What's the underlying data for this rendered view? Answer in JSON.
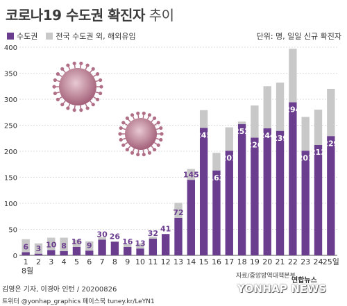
{
  "title": {
    "main": "코로나19 수도권 확진자",
    "sub": "추이"
  },
  "legend": {
    "metro": "수도권",
    "other": "전국 수도권 외, 해외유입"
  },
  "unit_note": "단위: 명, 일일 신규 확진자",
  "colors": {
    "metro": "#6b3d8f",
    "other": "#c8c8c8",
    "label": "#6b3d8f",
    "virus": "#b06f86"
  },
  "month_label": "8월",
  "day_suffix": "일",
  "source": "자료/중앙방역대책본부",
  "credit_line1": "김영은 기자, 이경아 인턴 / 20200826",
  "credit_line2": "트위터 @yonhap_graphics  페이스북 tuney.kr/LeYN1",
  "logo": {
    "ko": "연합뉴스",
    "en": "YONHAP NEWS"
  },
  "chart_data": {
    "type": "bar",
    "categories": [
      "1",
      "2",
      "3",
      "4",
      "5",
      "6",
      "7",
      "8",
      "9",
      "10",
      "11",
      "12",
      "13",
      "14",
      "15",
      "16",
      "17",
      "18",
      "19",
      "20",
      "21",
      "22",
      "23",
      "24",
      "25"
    ],
    "ylim": [
      0,
      400
    ],
    "yticks": [
      0,
      50,
      100,
      150,
      200,
      250,
      300,
      350,
      400
    ],
    "series": [
      {
        "name": "수도권",
        "values": [
          6,
          3,
          10,
          8,
          16,
          9,
          30,
          26,
          16,
          13,
          32,
          41,
          72,
          145,
          245,
          163,
          201,
          252,
          226,
          244,
          239,
          294,
          201,
          212,
          229
        ]
      },
      {
        "name": "전국 수도권 외, 해외유입",
        "values": [
          25,
          20,
          24,
          26,
          14,
          18,
          5,
          1,
          6,
          10,
          4,
          0,
          29,
          21,
          34,
          34,
          45,
          5,
          62,
          81,
          93,
          103,
          65,
          68,
          91
        ]
      }
    ],
    "stacked": true
  }
}
